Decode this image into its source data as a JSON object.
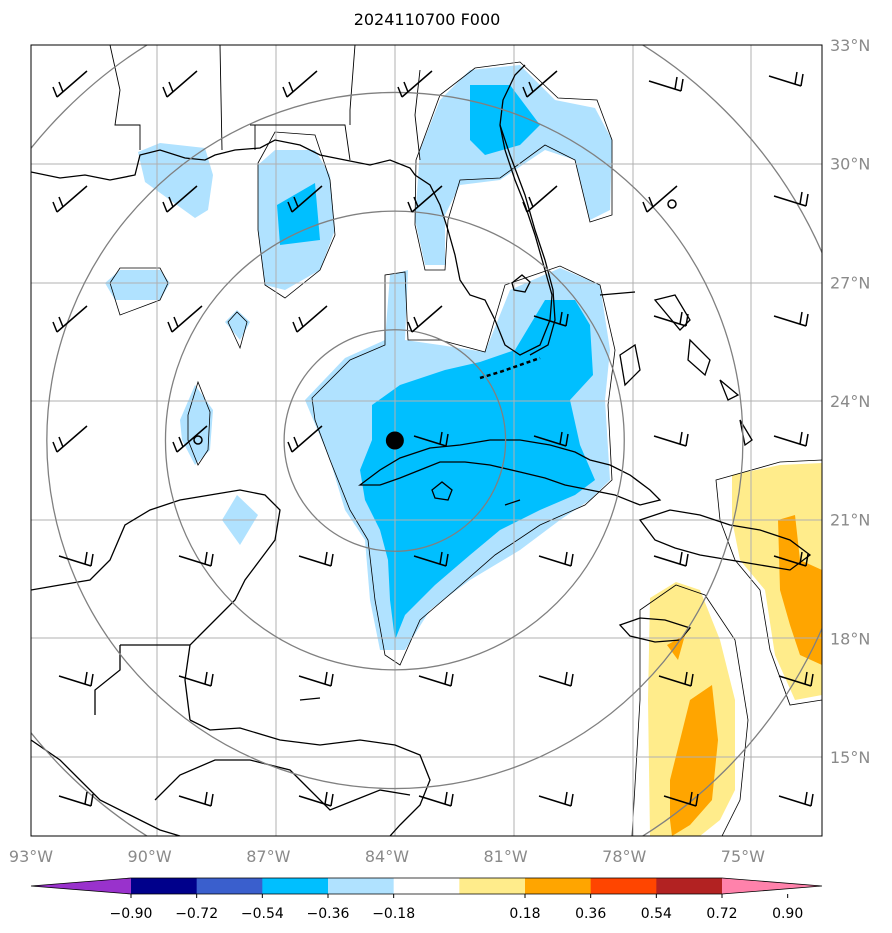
{
  "title": "2024110700 F000",
  "colors": {
    "land": "#000000",
    "grid": "#b0b0b0",
    "rings": "#808080",
    "axis_text": "#8a8a8a"
  },
  "map": {
    "lon_range": [
      -93,
      -73
    ],
    "lat_range": [
      13,
      33
    ],
    "x_ticks": [
      {
        "value": -93,
        "label": "93°W"
      },
      {
        "value": -90,
        "label": "90°W"
      },
      {
        "value": -87,
        "label": "87°W"
      },
      {
        "value": -84,
        "label": "84°W"
      },
      {
        "value": -81,
        "label": "81°W"
      },
      {
        "value": -78,
        "label": "78°W"
      },
      {
        "value": -75,
        "label": "75°W"
      }
    ],
    "y_ticks": [
      {
        "value": 33,
        "label": "33°N"
      },
      {
        "value": 30,
        "label": "30°N"
      },
      {
        "value": 27,
        "label": "27°N"
      },
      {
        "value": 24,
        "label": "24°N"
      },
      {
        "value": 21,
        "label": "21°N"
      },
      {
        "value": 18,
        "label": "18°N"
      },
      {
        "value": 15,
        "label": "15°N"
      }
    ],
    "storm_center": {
      "lon": -83.8,
      "lat": 23.0
    },
    "rings_deg": [
      2.8,
      5.8,
      8.8,
      11.8
    ]
  },
  "colorbar": {
    "labels": [
      "−0.90",
      "−0.72",
      "−0.54",
      "−0.36",
      "−0.18",
      "0.18",
      "0.36",
      "0.54",
      "0.72",
      "0.90"
    ],
    "colors": [
      "#9932cc",
      "#00008b",
      "#3a5fcd",
      "#00bfff",
      "#b0e2ff",
      "#ffffff",
      "#ffec8b",
      "#ffa500",
      "#ff4500",
      "#b22222",
      "#ff82ab"
    ]
  }
}
